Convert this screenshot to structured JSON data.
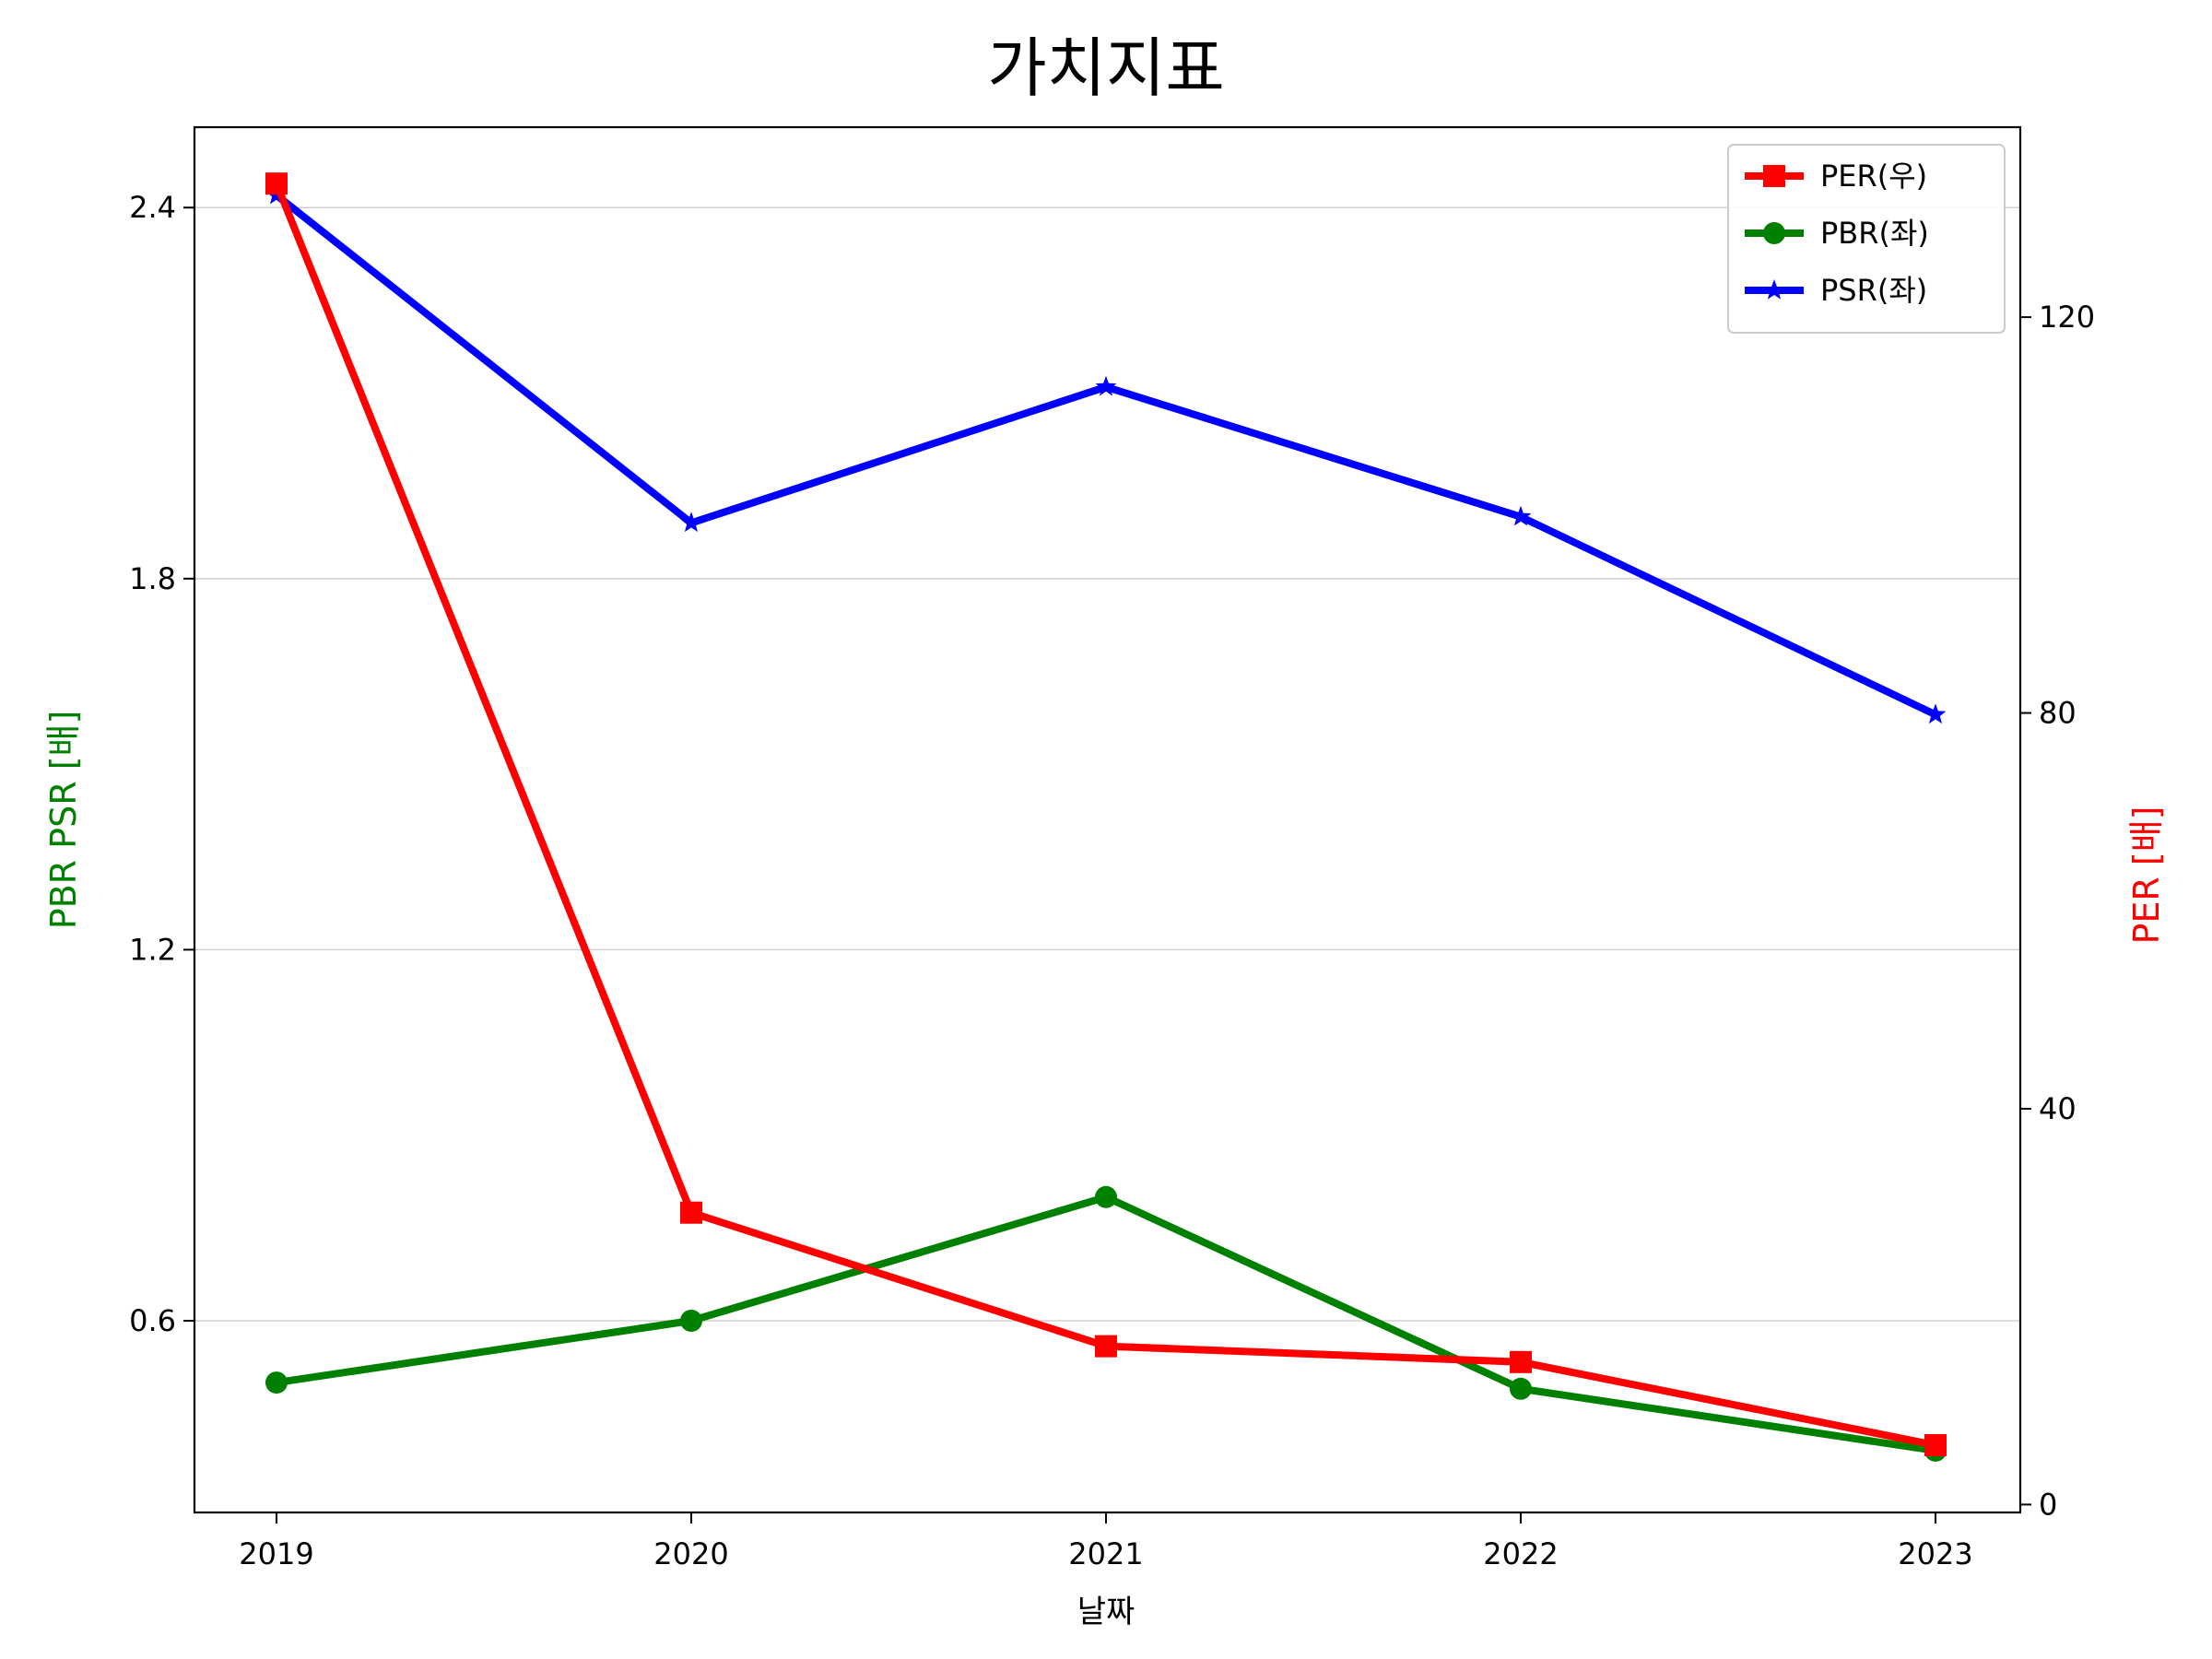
{
  "chart_data": {
    "type": "line",
    "title": "가치지표",
    "xlabel": "날짜",
    "ylabel_left": "PBR PSR [배]",
    "ylabel_right": "PER [배]",
    "ylabel_left_color": "#008000",
    "ylabel_right_color": "#ff0000",
    "categories": [
      "2019",
      "2020",
      "2021",
      "2022",
      "2023"
    ],
    "y_left": {
      "range": [
        0.29,
        2.53
      ],
      "ticks": [
        0.6,
        1.2,
        1.8,
        2.4
      ],
      "tick_labels": [
        "0.6",
        "1.2",
        "1.8",
        "2.4"
      ]
    },
    "y_right": {
      "range": [
        -0.8,
        139.2
      ],
      "ticks": [
        0,
        40,
        80,
        120
      ],
      "tick_labels": [
        "0",
        "40",
        "80",
        "120"
      ]
    },
    "grid": "horizontal (left axis)",
    "legend_position": "top-right",
    "series": [
      {
        "name": "PER(우)",
        "axis": "right",
        "color": "#ff0000",
        "marker": "square",
        "values": [
          133.5,
          29.5,
          16.0,
          14.4,
          6.0
        ]
      },
      {
        "name": "PBR(좌)",
        "axis": "left",
        "color": "#008000",
        "marker": "circle",
        "values": [
          0.5,
          0.6,
          0.8,
          0.49,
          0.39
        ]
      },
      {
        "name": "PSR(좌)",
        "axis": "left",
        "color": "#0000ff",
        "marker": "star",
        "values": [
          2.42,
          1.89,
          2.11,
          1.9,
          1.58
        ]
      }
    ]
  }
}
